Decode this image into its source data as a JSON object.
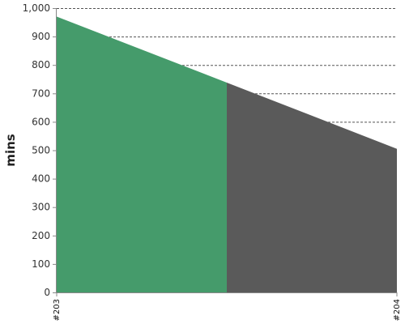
{
  "chart_data": {
    "type": "area",
    "title": "",
    "xlabel": "",
    "ylabel": "mins",
    "x": [
      "#203",
      "#204"
    ],
    "ylim": [
      0,
      1000
    ],
    "y_ticks": [
      0,
      100,
      200,
      300,
      400,
      500,
      600,
      700,
      800,
      900,
      1000
    ],
    "y_tick_labels": [
      "0",
      "100",
      "200",
      "300",
      "400",
      "500",
      "600",
      "700",
      "800",
      "900",
      "1,000"
    ],
    "grid": true,
    "legend": "none",
    "series": [
      {
        "points": [
          {
            "x": 0,
            "y": 970
          },
          {
            "x": 0.5,
            "y": 738
          },
          {
            "x": 1,
            "y": 505
          }
        ],
        "segments": [
          {
            "from": 0,
            "to": 0.5,
            "color": "#459b6b"
          },
          {
            "from": 0.5,
            "to": 1,
            "color": "#5a5a5a"
          }
        ]
      }
    ]
  }
}
